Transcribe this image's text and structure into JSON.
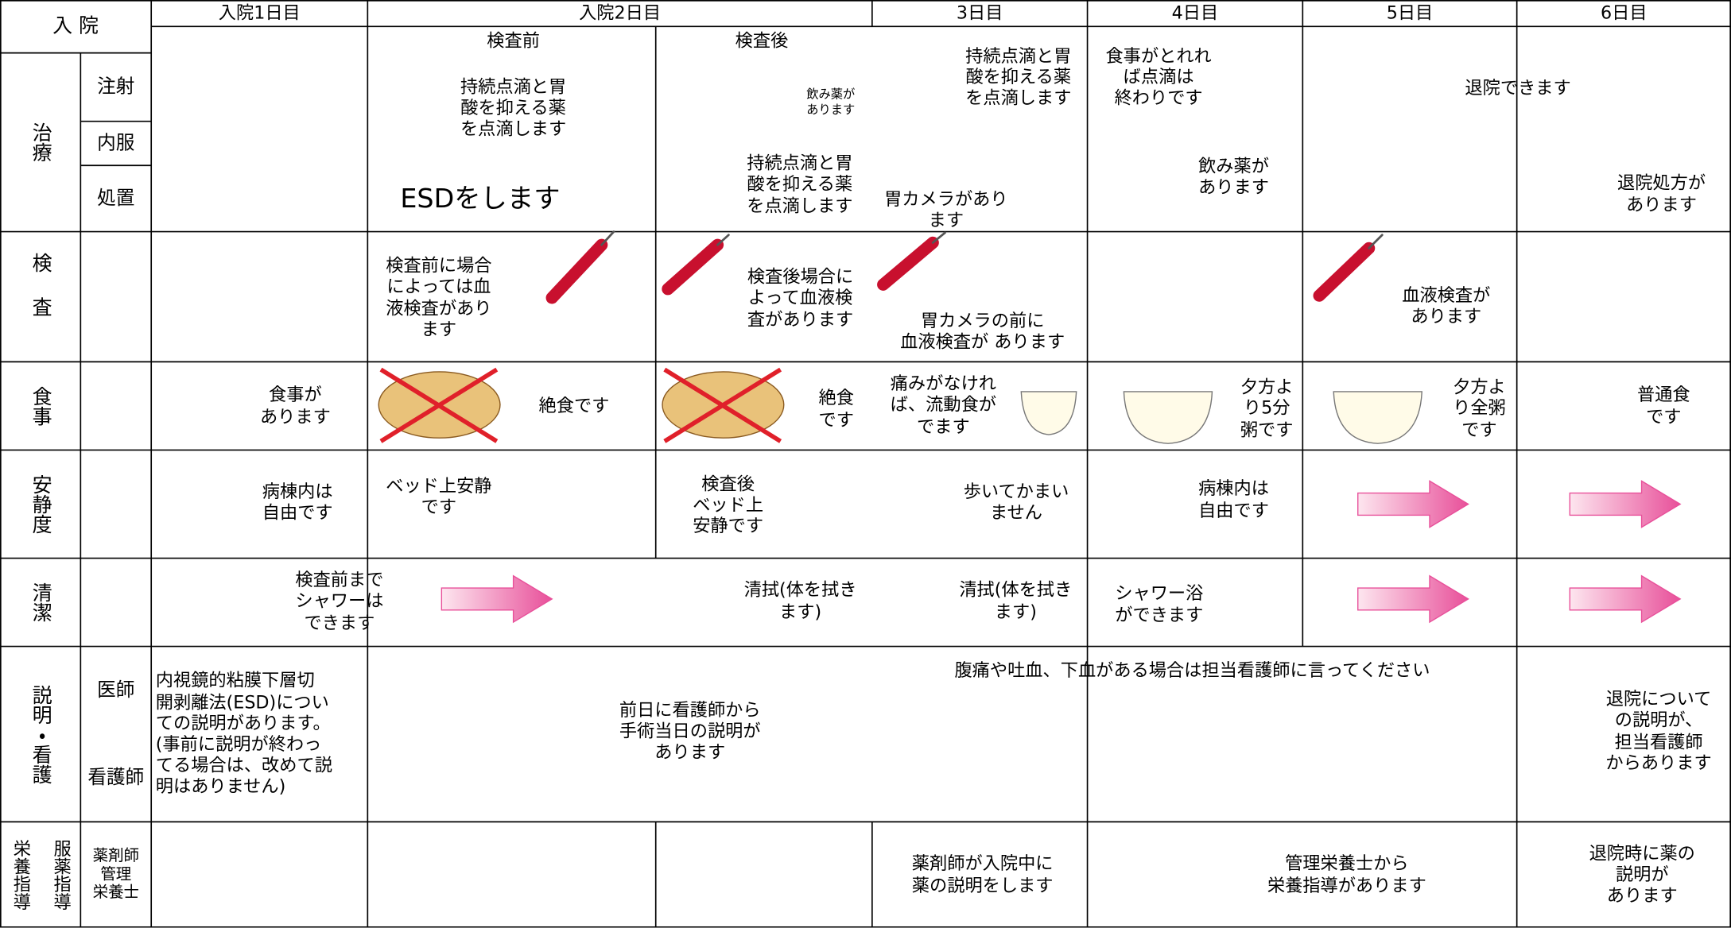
{
  "header": {
    "admission": "入 院",
    "days": [
      "入院1日目",
      "入院2日目",
      "3日目",
      "4日目",
      "5日目",
      "6日目"
    ]
  },
  "row_labels": {
    "treatment": "治療",
    "injection": "注射",
    "oral": "内服",
    "procedure": "処置",
    "exam": "検査",
    "meal": "食事",
    "rest": "安静度",
    "hygiene": "清潔",
    "explanation": "説明・看護",
    "doctor": "医師",
    "nurse": "看護師",
    "nutrition_guidance": "栄養指導",
    "medication_guidance": "服薬指導",
    "staff": "薬剤師\n管理\n栄養士"
  },
  "day1": {
    "meal": "食事が\nあります",
    "rest": "病棟内は\n自由です",
    "hygiene": "検査前まで\nシャワーは\nできます",
    "explanation": "内視鏡的粘膜下層切\n開剥離法(ESD)につい\nての説明があります。\n(事前に説明が終わっ\nてる場合は、改めて説\n明はありません)"
  },
  "day2_pre": {
    "label": "検査前",
    "injection": "持続点滴と胃\n酸を抑える薬\nを点滴します",
    "procedure": "ESDをします",
    "exam": "検査前に場合\nによっては血\n液検査があり\nます",
    "meal": "絶食です",
    "rest": "ベッド上安静\nです"
  },
  "day2_post": {
    "label": "検査後",
    "oral": "飲み薬が\nあります",
    "procedure": "持続点滴と胃\n酸を抑える薬\nを点滴します",
    "exam": "検査後場合に\nよって血液検\n査があります",
    "meal": "絶食\nです",
    "rest": "検査後\nベッド上\n安静です",
    "hygiene": "清拭(体を拭き\nます)"
  },
  "day2": {
    "explanation": "前日に看護師から\n手術当日の説明が\nあります"
  },
  "day3": {
    "injection": "持続点滴と胃\n酸を抑える薬\nを点滴します",
    "procedure": "胃カメラがあり\nます",
    "exam": "胃カメラの前に\n血液検査が あります",
    "meal": "痛みがなけれ\nば、流動食が\nでます",
    "rest": "歩いてかまい\nません",
    "hygiene": "清拭(体を拭き\nます)",
    "guidance": "薬剤師が入院中に\n薬の説明をします"
  },
  "day4": {
    "injection": "食事がとれれ\nば点滴は\n終わりです",
    "oral": "飲み薬が\nあります",
    "meal": "夕方よ\nり5分\n粥です",
    "rest": "病棟内は\n自由です",
    "hygiene": "シャワー浴\nができます",
    "guidance": "管理栄養士から\n栄養指導があります"
  },
  "day5": {
    "exam": "血液検査が\nあります",
    "meal": "夕方よ\nり全粥\nです"
  },
  "day6": {
    "injection": "退院できます",
    "oral": "退院処方が\nあります",
    "meal": "普通食\nです",
    "explanation": "退院について\nの説明が、\n担当看護師\nからあります",
    "guidance": "退院時に薬の\n説明が\nあります"
  },
  "note": "腹痛や吐血、下血がある場合は担当看護師に言ってください"
}
